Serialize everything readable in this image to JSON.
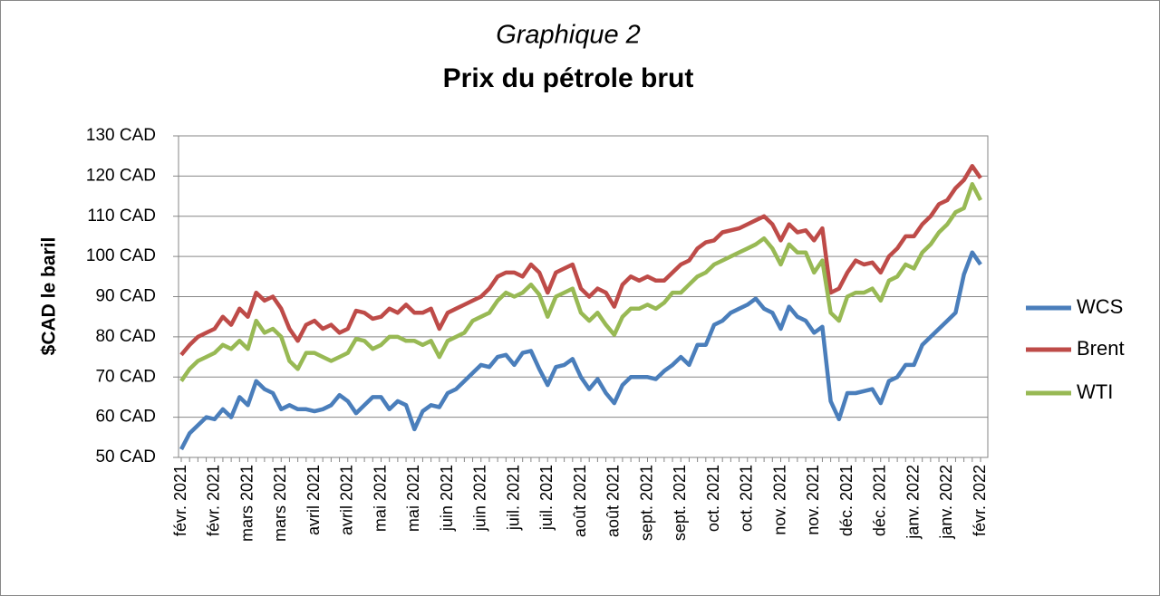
{
  "chart_data": {
    "type": "line",
    "title": "Graphique 2",
    "subtitle": "Prix du pétrole brut",
    "y_label": "$CAD le baril",
    "categories": [
      "févr. 2021",
      null,
      null,
      null,
      "févr. 2021",
      null,
      null,
      null,
      "mars 2021",
      null,
      null,
      null,
      "mars 2021",
      null,
      null,
      null,
      "avril 2021",
      null,
      null,
      null,
      "avril 2021",
      null,
      null,
      null,
      "mai 2021",
      null,
      null,
      null,
      "mai 2021",
      null,
      null,
      null,
      "juin 2021",
      null,
      null,
      null,
      "juin 2021",
      null,
      null,
      null,
      "juil. 2021",
      null,
      null,
      null,
      "juil. 2021",
      null,
      null,
      null,
      "août 2021",
      null,
      null,
      null,
      "août 2021",
      null,
      null,
      null,
      "sept. 2021",
      null,
      null,
      null,
      "sept. 2021",
      null,
      null,
      null,
      "oct. 2021",
      null,
      null,
      null,
      "oct. 2021",
      null,
      null,
      null,
      "nov. 2021",
      null,
      null,
      null,
      "nov. 2021",
      null,
      null,
      null,
      "déc. 2021",
      null,
      null,
      null,
      "déc. 2021",
      null,
      null,
      null,
      "janv. 2022",
      null,
      null,
      null,
      "janv. 2022",
      null,
      null,
      null,
      "févr. 2022"
    ],
    "series": [
      {
        "name": "WCS",
        "color": "#4a7ebb",
        "values": [
          52,
          56,
          58,
          60,
          59.5,
          62,
          60,
          65,
          63,
          69,
          67,
          66,
          62,
          63,
          62,
          62,
          61.5,
          62,
          63,
          65.5,
          64,
          61,
          63,
          65,
          65,
          62,
          64,
          63,
          57,
          61.5,
          63,
          62.5,
          66,
          67,
          69,
          71,
          73,
          72.5,
          75,
          75.5,
          73,
          76,
          76.5,
          72,
          68,
          72.5,
          73,
          74.5,
          70,
          67,
          69.5,
          66,
          63.5,
          68,
          70,
          70,
          70,
          69.5,
          71.5,
          73,
          75,
          73,
          78,
          78,
          83,
          84,
          86,
          87,
          88,
          89.5,
          87,
          86,
          82,
          87.5,
          85,
          84,
          81,
          82.5,
          64,
          59.5,
          66,
          66,
          66.5,
          67,
          63.5,
          69,
          70,
          73,
          73,
          78,
          80,
          82,
          84,
          86,
          95.5,
          101,
          98
        ]
      },
      {
        "name": "Brent",
        "color": "#be4b48",
        "values": [
          75.5,
          78,
          80,
          81,
          82,
          85,
          83,
          87,
          85,
          91,
          89,
          90,
          87,
          82,
          79,
          83,
          84,
          82,
          83,
          81,
          82,
          86.5,
          86,
          84.5,
          85,
          87,
          86,
          88,
          86,
          86,
          87,
          82,
          86,
          87,
          88,
          89,
          90,
          92,
          95,
          96,
          96,
          95,
          98,
          96,
          91,
          96,
          97,
          98,
          92,
          90,
          92,
          91,
          87.5,
          93,
          95,
          94,
          95,
          94,
          94,
          96,
          98,
          99,
          102,
          103.5,
          104,
          106,
          106.5,
          107,
          108,
          109,
          110,
          108,
          104,
          108,
          106,
          106.5,
          104,
          107,
          91,
          92,
          96,
          99,
          98,
          98.5,
          96,
          100,
          102,
          105,
          105,
          108,
          110,
          113,
          114,
          117,
          119,
          122.5,
          119.5
        ]
      },
      {
        "name": "WTI",
        "color": "#98b954",
        "values": [
          69,
          72,
          74,
          75,
          76,
          78,
          77,
          79,
          77,
          84,
          81,
          82,
          80,
          74,
          72,
          76,
          76,
          75,
          74,
          75,
          76,
          79.5,
          79,
          77,
          78,
          80,
          80,
          79,
          79,
          78,
          79,
          75,
          79,
          80,
          81,
          84,
          85,
          86,
          89,
          91,
          90,
          91,
          93,
          90.5,
          85,
          90,
          91,
          92,
          86,
          84,
          86,
          83,
          80.5,
          85,
          87,
          87,
          88,
          87,
          88.5,
          91,
          91,
          93,
          95,
          96,
          98,
          99,
          100,
          101,
          102,
          103,
          104.5,
          102,
          98,
          103,
          101,
          101,
          96,
          99,
          86,
          84,
          90,
          91,
          91,
          92,
          89,
          94,
          95,
          98,
          97,
          101,
          103,
          106,
          108,
          111,
          112,
          118,
          114
        ]
      }
    ],
    "ylim": [
      50,
      130
    ],
    "yticks": [
      {
        "value": 50,
        "label": "50 CAD"
      },
      {
        "value": 60,
        "label": "60 CAD"
      },
      {
        "value": 70,
        "label": "70 CAD"
      },
      {
        "value": 80,
        "label": "80 CAD"
      },
      {
        "value": 90,
        "label": "90 CAD"
      },
      {
        "value": 100,
        "label": "100 CAD"
      },
      {
        "value": 110,
        "label": "110 CAD"
      },
      {
        "value": 120,
        "label": "120 CAD"
      },
      {
        "value": 130,
        "label": "130 CAD"
      }
    ],
    "grid": true,
    "legend": "right"
  }
}
